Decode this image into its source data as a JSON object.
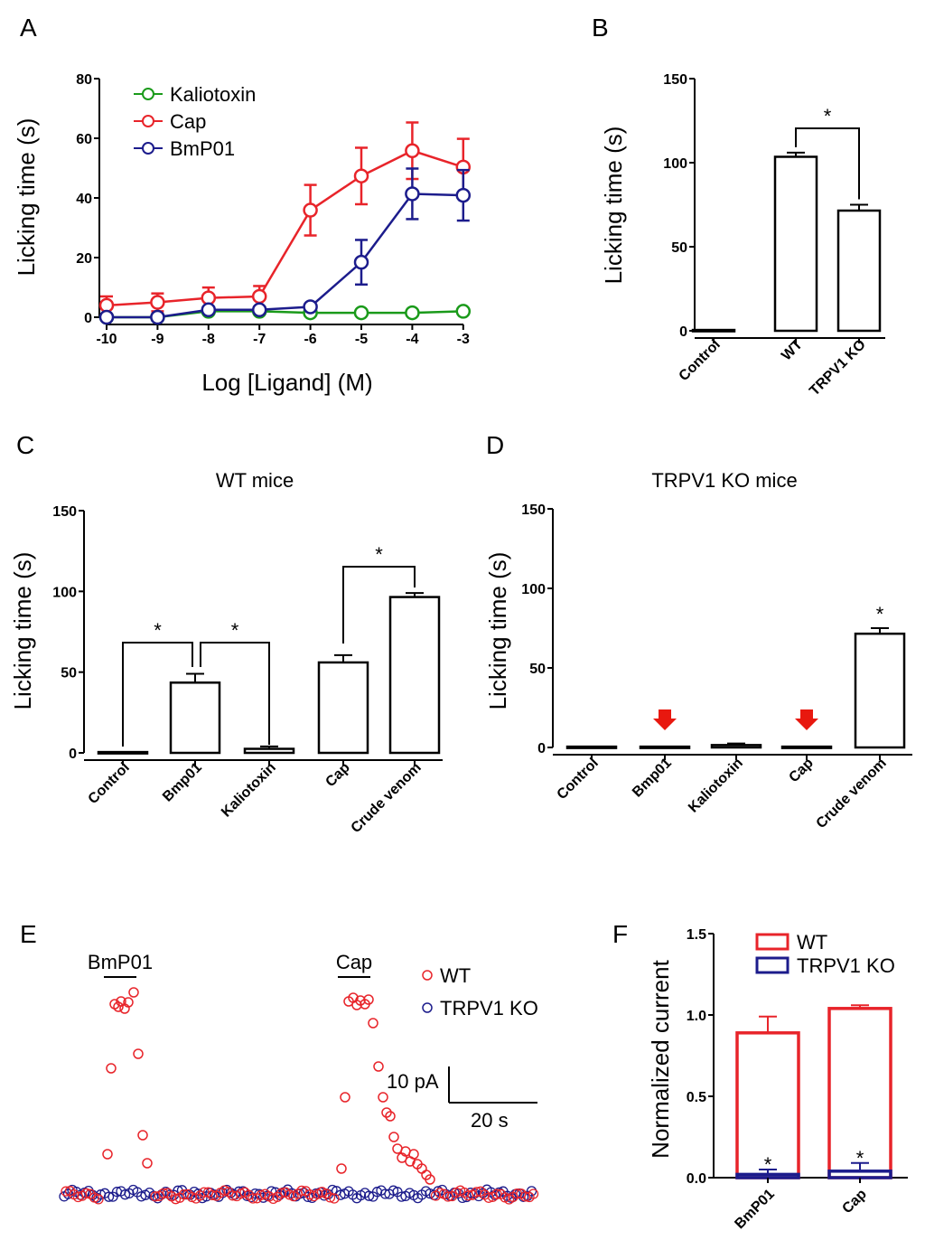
{
  "colors": {
    "axis": "#000000",
    "red": "#e8242a",
    "blue": "#1c1c8c",
    "green": "#1a9a1a",
    "arrow": "#e8180f"
  },
  "chart_data": [
    {
      "panel": "A",
      "type": "line",
      "xlabel": "Log [Ligand] (M)",
      "ylabel": "Licking time (s)",
      "x": [
        -10,
        -9,
        -8,
        -7,
        -6,
        -5,
        -4,
        -3
      ],
      "xticks": [
        "-10",
        "-9",
        "-8",
        "-7",
        "-6",
        "-5",
        "-4",
        "-3"
      ],
      "yticks": [
        "0",
        "20",
        "40",
        "60",
        "80"
      ],
      "ylim": [
        0,
        80
      ],
      "series": [
        {
          "name": "Kaliotoxin",
          "color": "#1a9a1a",
          "values": [
            0,
            0,
            2,
            2,
            1.5,
            1.5,
            1.5,
            2
          ],
          "err": [
            0,
            0,
            0,
            0,
            0,
            0,
            0,
            0
          ]
        },
        {
          "name": "Cap",
          "color": "#e8242a",
          "values": [
            4,
            5,
            6.5,
            7,
            36,
            47.5,
            56,
            50.5
          ],
          "err": [
            3,
            3,
            3.5,
            3.5,
            8.5,
            9.5,
            9.5,
            9.5
          ]
        },
        {
          "name": "BmP01",
          "color": "#1c1c8c",
          "values": [
            0,
            0,
            2.5,
            2.5,
            3.5,
            18.5,
            41.5,
            41
          ],
          "err": [
            0,
            0,
            0.5,
            0.5,
            0.5,
            7.5,
            8.5,
            8.5
          ]
        }
      ]
    },
    {
      "panel": "B",
      "type": "bar",
      "ylabel": "Licking time (s)",
      "categories": [
        "Control",
        "WT",
        "TRPV1 KO"
      ],
      "values": [
        0.5,
        103.5,
        71.5
      ],
      "err": [
        0,
        2.5,
        3.5
      ],
      "ylim": [
        0,
        150
      ],
      "yticks": [
        "0",
        "50",
        "100",
        "150"
      ],
      "significance": [
        {
          "from": 1,
          "to": 2,
          "label": "*"
        }
      ]
    },
    {
      "panel": "C",
      "type": "bar",
      "title": "WT mice",
      "ylabel": "Licking time (s)",
      "categories": [
        "Control",
        "Bmp01",
        "Kaliotoxin",
        "Cap",
        "Crude venom"
      ],
      "values": [
        0.5,
        43.5,
        2.5,
        56,
        96.5
      ],
      "err": [
        0,
        5.5,
        1.5,
        4.5,
        2.5
      ],
      "ylim": [
        0,
        150
      ],
      "yticks": [
        "0",
        "50",
        "100",
        "150"
      ],
      "significance": [
        {
          "from": 0,
          "to": 1,
          "label": "*"
        },
        {
          "from": 1,
          "to": 2,
          "label": "*"
        },
        {
          "from": 3,
          "to": 4,
          "label": "*"
        }
      ]
    },
    {
      "panel": "D",
      "type": "bar",
      "title": "TRPV1 KO mice",
      "ylabel": "Licking time (s)",
      "categories": [
        "Control",
        "Bmp01",
        "Kaliotoxin",
        "Cap",
        "Crude venom"
      ],
      "values": [
        0.5,
        0.5,
        1.5,
        0.5,
        71.5
      ],
      "err": [
        0,
        0,
        1,
        0,
        3.5
      ],
      "ylim": [
        0,
        150
      ],
      "yticks": [
        "0",
        "50",
        "100",
        "150"
      ],
      "star_over": 4,
      "star_label": "*",
      "arrows_over": [
        1,
        3
      ]
    },
    {
      "panel": "E",
      "type": "scatter",
      "labels": {
        "stim1": "BmP01",
        "stim2": "Cap"
      },
      "legend": [
        "WT",
        "TRPV1 KO"
      ],
      "scalebar": {
        "y": "10 pA",
        "x": "20 s"
      },
      "wt_peaks": [
        [
          119,
          1277
        ],
        [
          123,
          1182
        ],
        [
          127,
          1111
        ],
        [
          131,
          1114
        ],
        [
          134,
          1108
        ],
        [
          138,
          1116
        ],
        [
          142,
          1109
        ],
        [
          148,
          1098
        ],
        [
          153,
          1166
        ],
        [
          158,
          1256
        ],
        [
          163,
          1287
        ],
        [
          378,
          1293
        ],
        [
          382,
          1214
        ],
        [
          386,
          1108
        ],
        [
          391,
          1104
        ],
        [
          395,
          1112
        ],
        [
          399,
          1107
        ],
        [
          404,
          1111
        ],
        [
          408,
          1106
        ],
        [
          413,
          1132
        ],
        [
          419,
          1180
        ],
        [
          424,
          1214
        ],
        [
          428,
          1231
        ],
        [
          432,
          1235
        ],
        [
          436,
          1258
        ],
        [
          440,
          1271
        ],
        [
          445,
          1281
        ],
        [
          449,
          1274
        ],
        [
          454,
          1285
        ],
        [
          458,
          1277
        ],
        [
          462,
          1288
        ],
        [
          467,
          1293
        ],
        [
          472,
          1300
        ],
        [
          476,
          1305
        ]
      ]
    },
    {
      "panel": "F",
      "type": "bar",
      "ylabel": "Normalized current",
      "categories": [
        "BmP01",
        "Cap"
      ],
      "series": [
        {
          "name": "WT",
          "color": "#e8242a",
          "values": [
            0.89,
            1.04
          ],
          "err": [
            0.1,
            0.02
          ]
        },
        {
          "name": "TRPV1 KO",
          "color": "#1c1c8c",
          "values": [
            0.02,
            0.04
          ],
          "err": [
            0.03,
            0.05
          ]
        }
      ],
      "ylim": [
        0,
        1.5
      ],
      "yticks": [
        "0.0",
        "0.5",
        "1.0",
        "1.5"
      ],
      "star_label": "*"
    }
  ],
  "panels": {
    "a": "A",
    "b": "B",
    "c": "C",
    "d": "D",
    "e": "E",
    "f": "F"
  }
}
